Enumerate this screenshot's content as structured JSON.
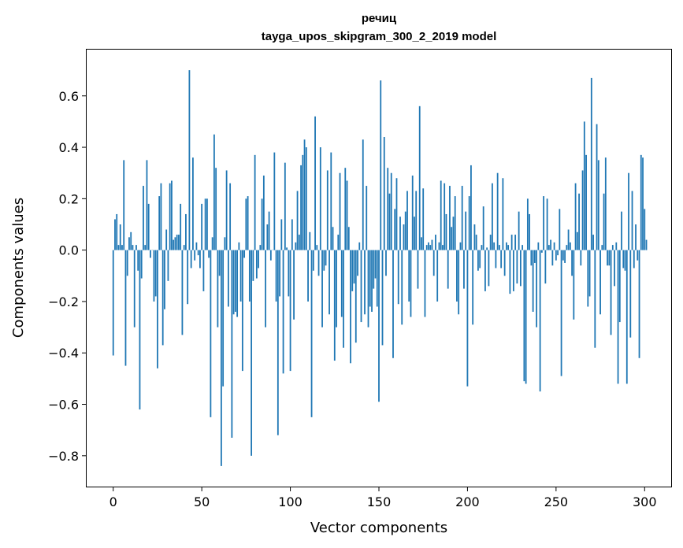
{
  "chart_data": {
    "type": "bar",
    "title_line1": "речиц",
    "title_line2": "tayga_upos_skipgram_300_2_2019 model",
    "xlabel": "Vector components",
    "ylabel": "Components values",
    "xlim": [
      -15,
      315
    ],
    "ylim": [
      -0.92,
      0.78
    ],
    "xticks": [
      0,
      50,
      100,
      150,
      200,
      250,
      300
    ],
    "xtick_labels": [
      "0",
      "50",
      "100",
      "150",
      "200",
      "250",
      "300"
    ],
    "yticks": [
      -0.8,
      -0.6,
      -0.4,
      -0.2,
      0.0,
      0.2,
      0.4,
      0.6
    ],
    "ytick_labels": [
      "−0.8",
      "−0.6",
      "−0.4",
      "−0.2",
      "0.0",
      "0.2",
      "0.4",
      "0.6"
    ],
    "bar_color": "#1f77b4",
    "grid": false,
    "values": [
      -0.41,
      0.12,
      0.14,
      0.02,
      0.1,
      0.02,
      0.35,
      -0.45,
      -0.1,
      0.05,
      0.07,
      0.02,
      -0.3,
      0.02,
      -0.08,
      -0.62,
      -0.11,
      0.25,
      0.02,
      0.35,
      0.18,
      -0.03,
      0.0,
      -0.2,
      -0.18,
      -0.46,
      0.21,
      0.26,
      -0.37,
      -0.23,
      0.08,
      -0.12,
      0.26,
      0.27,
      0.04,
      0.05,
      0.06,
      0.06,
      0.18,
      -0.33,
      0.02,
      0.14,
      -0.21,
      0.7,
      -0.07,
      0.36,
      -0.04,
      0.03,
      -0.02,
      -0.07,
      0.18,
      -0.16,
      0.2,
      0.2,
      -0.03,
      -0.65,
      0.05,
      0.45,
      0.32,
      -0.3,
      -0.1,
      -0.84,
      -0.53,
      0.05,
      0.31,
      -0.22,
      0.26,
      -0.73,
      -0.25,
      -0.24,
      -0.26,
      0.03,
      -0.2,
      -0.47,
      -0.03,
      0.2,
      0.21,
      -0.2,
      -0.8,
      -0.12,
      0.37,
      -0.11,
      -0.07,
      0.02,
      0.2,
      0.29,
      -0.3,
      0.1,
      0.15,
      -0.04,
      0.0,
      0.38,
      -0.2,
      -0.72,
      -0.18,
      0.12,
      -0.48,
      0.34,
      0.01,
      -0.18,
      -0.47,
      0.12,
      -0.27,
      0.03,
      0.23,
      0.06,
      0.33,
      0.37,
      0.43,
      0.4,
      -0.2,
      0.07,
      -0.65,
      -0.08,
      0.52,
      0.02,
      -0.1,
      0.4,
      -0.3,
      -0.08,
      -0.06,
      0.31,
      -0.25,
      0.38,
      0.09,
      -0.43,
      -0.3,
      0.06,
      0.3,
      -0.26,
      -0.38,
      0.32,
      0.27,
      0.09,
      -0.44,
      -0.16,
      -0.13,
      -0.36,
      -0.1,
      0.03,
      -0.28,
      0.43,
      -0.25,
      0.25,
      -0.3,
      -0.22,
      -0.24,
      -0.15,
      -0.11,
      -0.22,
      -0.59,
      0.66,
      -0.37,
      0.44,
      -0.1,
      0.32,
      0.22,
      0.3,
      -0.42,
      0.16,
      0.28,
      -0.21,
      0.13,
      -0.29,
      0.1,
      0.15,
      0.23,
      -0.2,
      -0.26,
      0.29,
      0.13,
      0.23,
      -0.15,
      0.56,
      0.05,
      0.24,
      -0.26,
      0.02,
      0.03,
      0.02,
      0.04,
      -0.1,
      0.06,
      -0.2,
      0.03,
      0.27,
      0.02,
      0.26,
      0.14,
      -0.15,
      0.25,
      0.09,
      0.13,
      0.21,
      -0.2,
      -0.25,
      0.03,
      0.25,
      -0.15,
      0.15,
      -0.53,
      0.21,
      0.33,
      -0.29,
      0.1,
      0.06,
      -0.08,
      -0.07,
      0.02,
      0.17,
      -0.16,
      0.01,
      -0.14,
      0.06,
      0.26,
      0.03,
      -0.07,
      0.3,
      0.02,
      -0.07,
      0.28,
      -0.1,
      0.03,
      0.02,
      -0.17,
      0.06,
      -0.16,
      0.06,
      -0.13,
      0.15,
      -0.14,
      0.02,
      -0.51,
      -0.52,
      0.2,
      0.14,
      -0.06,
      -0.24,
      -0.05,
      -0.3,
      0.03,
      -0.55,
      -0.01,
      0.21,
      -0.13,
      0.2,
      0.02,
      0.04,
      -0.06,
      0.03,
      -0.04,
      -0.02,
      0.16,
      -0.49,
      -0.04,
      -0.05,
      0.02,
      0.08,
      0.03,
      -0.1,
      -0.27,
      0.26,
      0.07,
      0.22,
      -0.06,
      0.31,
      0.5,
      0.37,
      -0.22,
      -0.18,
      0.67,
      0.06,
      -0.38,
      0.49,
      0.35,
      -0.25,
      0.02,
      0.22,
      0.36,
      -0.06,
      -0.06,
      -0.33,
      0.02,
      -0.14,
      0.03,
      -0.52,
      -0.28,
      0.15,
      -0.07,
      -0.08,
      -0.52,
      0.3,
      -0.34,
      0.23,
      -0.07,
      0.1,
      -0.04,
      -0.42,
      0.37,
      0.36,
      0.16,
      0.04
    ]
  }
}
